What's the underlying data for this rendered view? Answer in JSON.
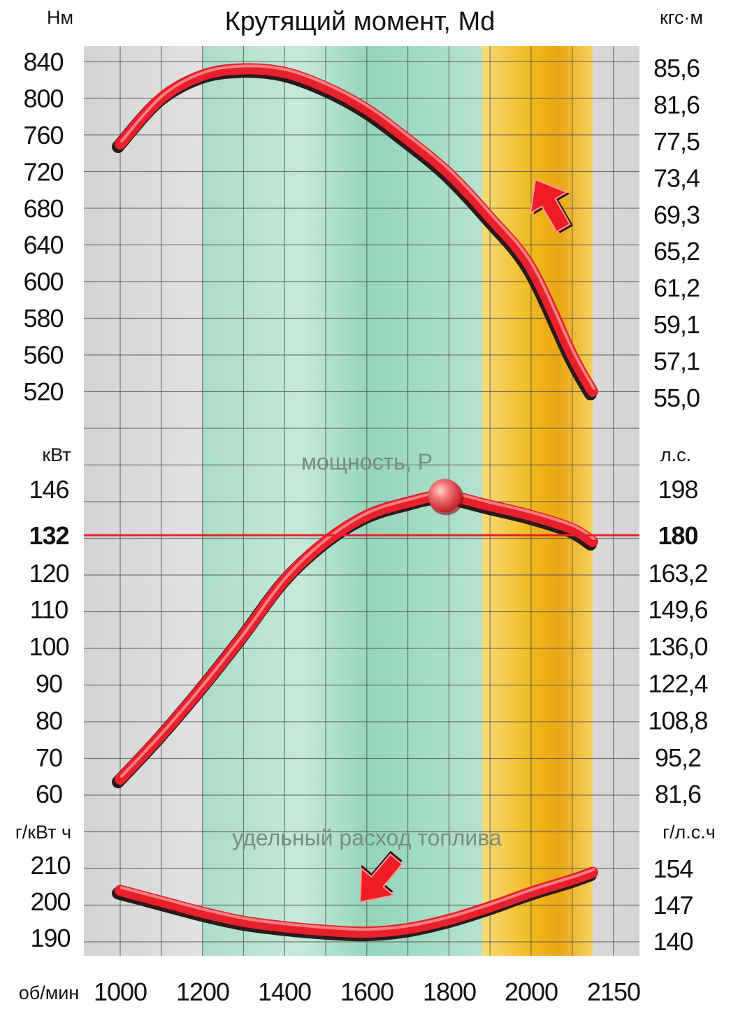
{
  "chart_data": {
    "type": "line",
    "title": "Крутящий момент, Md",
    "x_unit": "об/мин",
    "x_ticks": [
      "1000",
      "1200",
      "1400",
      "1600",
      "1800",
      "2000",
      "2150"
    ],
    "xlim": [
      910,
      2150
    ],
    "bands": [
      {
        "from": 1200,
        "to": 1900,
        "color": "#9fdcc4"
      },
      {
        "from": 1900,
        "to": 2150,
        "color": "#f2c02a"
      }
    ],
    "panels": [
      {
        "id": "torque",
        "left_unit": "Нм",
        "right_unit": "кгс·м",
        "left_ticks": [
          "840",
          "800",
          "760",
          "720",
          "680",
          "640",
          "600",
          "580",
          "560",
          "520"
        ],
        "right_ticks": [
          "85,6",
          "81,6",
          "77,5",
          "73,4",
          "69,3",
          "65,2",
          "61,2",
          "59,1",
          "57,1",
          "55,0"
        ],
        "series": [
          {
            "x": [
              1000,
              1100,
              1200,
              1300,
              1400,
              1500,
              1600,
              1700,
              1800,
              1900,
              2000,
              2100,
              2150
            ],
            "y": [
              750,
              800,
              825,
              832,
              828,
              812,
              788,
              755,
              718,
              670,
              615,
              560,
              520
            ],
            "color": "#e8202c"
          }
        ]
      },
      {
        "id": "power",
        "left_unit": "кВт",
        "right_unit": "л.с.",
        "series_label": "мощность, P",
        "left_ticks": [
          "146",
          "132",
          "120",
          "110",
          "100",
          "90",
          "80",
          "70",
          "60"
        ],
        "right_ticks": [
          "198",
          "180",
          "163,2",
          "149,6",
          "136,0",
          "122,4",
          "108,8",
          "95,2",
          "81,6"
        ],
        "highlight_left": "132",
        "highlight_right": "180",
        "reference_value": 132,
        "peak_marker": {
          "x": 1790,
          "y": 144
        },
        "series": [
          {
            "x": [
              1000,
              1100,
              1200,
              1300,
              1400,
              1500,
              1600,
              1700,
              1790,
              1900,
              2000,
              2100,
              2150
            ],
            "y": [
              64,
              76,
              89,
              103,
              118,
              130,
              138,
              142,
              144,
              141,
              138,
              134,
              130
            ],
            "color": "#e8202c"
          }
        ]
      },
      {
        "id": "fuel",
        "left_unit": "г/кВт ч",
        "right_unit": "г/л.с.ч",
        "series_label": "удельный расход топлива",
        "left_ticks": [
          "210",
          "200",
          "190"
        ],
        "right_ticks": [
          "154",
          "147",
          "140"
        ],
        "series": [
          {
            "x": [
              1000,
              1100,
              1200,
              1300,
              1400,
              1500,
              1600,
              1700,
              1800,
              1900,
              2000,
              2100,
              2150
            ],
            "y": [
              203,
              200,
              197,
              194.5,
              193,
              192,
              191.5,
              192.5,
              195,
              198.5,
              202.5,
              206,
              208
            ],
            "color": "#e8202c"
          }
        ]
      }
    ]
  },
  "colors": {
    "curve": "#e8202c",
    "curve_shadow": "#2a1a1a",
    "curve_highlight": "#f6a0a0",
    "reference_line": "#e8202c",
    "grid": "#555555",
    "plot_bg": "#e9e9e9"
  }
}
